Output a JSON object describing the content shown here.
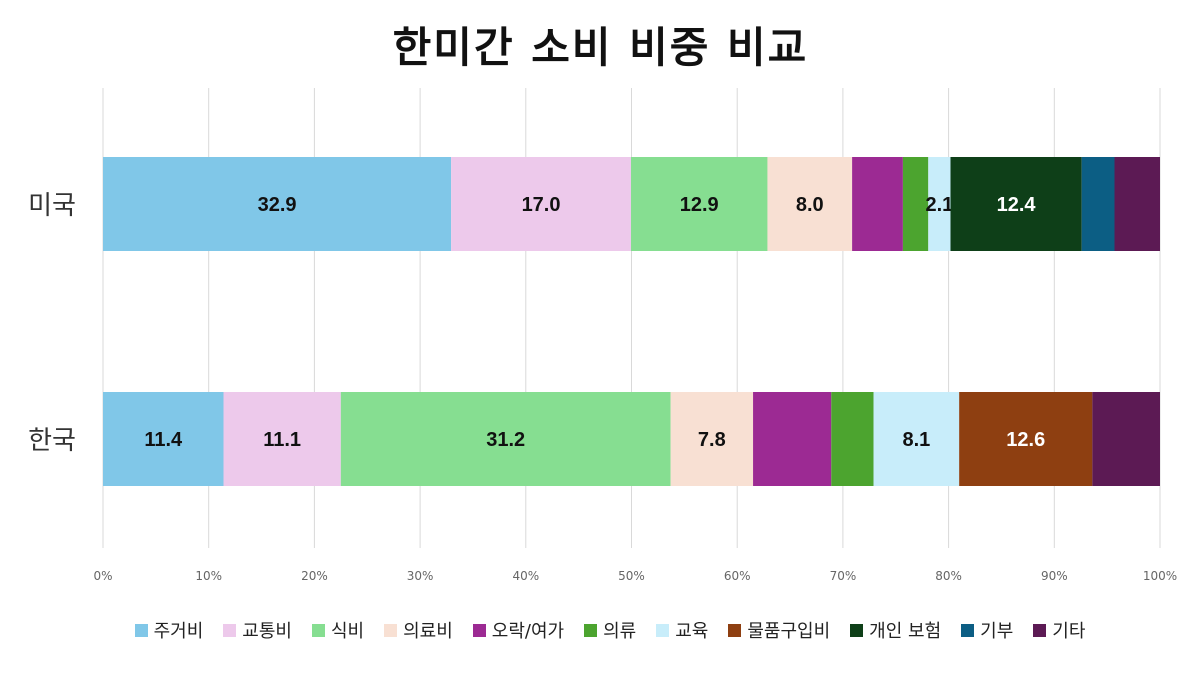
{
  "chart_data": {
    "type": "bar",
    "orientation": "horizontal",
    "stacked": true,
    "normalized": true,
    "title": "한미간 소비 비중 비교",
    "xlabel": "",
    "ylabel": "",
    "xlim": [
      0,
      100
    ],
    "x_ticks": [
      "0%",
      "10%",
      "20%",
      "30%",
      "40%",
      "50%",
      "60%",
      "70%",
      "80%",
      "90%",
      "100%"
    ],
    "grid": "vertical",
    "legend_position": "bottom",
    "categories": [
      "미국",
      "한국"
    ],
    "series": [
      {
        "name": "주거비",
        "color": "#80C7E8",
        "values": [
          32.9,
          11.4
        ],
        "labels": [
          "32.9",
          "11.4"
        ]
      },
      {
        "name": "교통비",
        "color": "#EDC9EB",
        "values": [
          17.0,
          11.1
        ],
        "labels": [
          "17.0",
          "11.1"
        ]
      },
      {
        "name": "식비",
        "color": "#86DE91",
        "values": [
          12.9,
          31.2
        ],
        "labels": [
          "12.9",
          "31.2"
        ]
      },
      {
        "name": "의료비",
        "color": "#F8E0D3",
        "values": [
          8.0,
          7.8
        ],
        "labels": [
          "8.0",
          "7.8"
        ]
      },
      {
        "name": "오락/여가",
        "color": "#9C2A93",
        "values": [
          4.8,
          7.4
        ],
        "labels": [
          "",
          ""
        ]
      },
      {
        "name": "의류",
        "color": "#4CA42F",
        "values": [
          2.4,
          4.0
        ],
        "labels": [
          "",
          ""
        ]
      },
      {
        "name": "교육",
        "color": "#C8EDFA",
        "values": [
          2.1,
          8.1
        ],
        "labels": [
          "2.1",
          "8.1"
        ]
      },
      {
        "name": "물품구입비",
        "color": "#8E3F11",
        "values": [
          0,
          12.6
        ],
        "labels": [
          "",
          "12.6"
        ]
      },
      {
        "name": "개인 보험",
        "color": "#0E3F18",
        "values": [
          12.4,
          0
        ],
        "labels": [
          "12.4",
          ""
        ]
      },
      {
        "name": "기부",
        "color": "#0C5E84",
        "values": [
          3.1,
          0
        ],
        "labels": [
          "",
          ""
        ]
      },
      {
        "name": "기타",
        "color": "#5C1A54",
        "values": [
          4.3,
          6.4
        ],
        "labels": [
          "",
          ""
        ]
      }
    ],
    "label_color_light": "#FFFFFF",
    "label_color_dark": "#111111",
    "grid_color": "#D9D9D9",
    "tick_color": "#666666",
    "category_color": "#333333"
  }
}
